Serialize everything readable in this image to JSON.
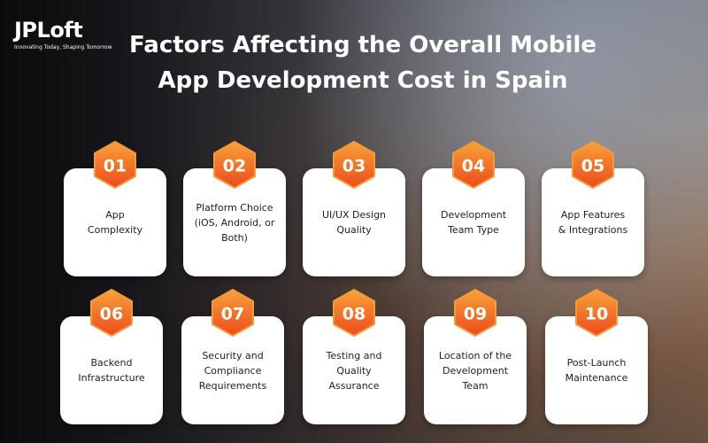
{
  "logo": {
    "name": "JPLoft",
    "tagline": "Innovating Today, Shaping Tomorrow"
  },
  "title": [
    "Factors Affecting the Overall Mobile",
    "App Development Cost in Spain"
  ],
  "factors": [
    {
      "number": "01",
      "lines": [
        "App",
        "Complexity"
      ]
    },
    {
      "number": "02",
      "lines": [
        "Platform Choice",
        "(iOS, Android, or",
        "Both)"
      ]
    },
    {
      "number": "03",
      "lines": [
        "UI/UX Design",
        "Quality"
      ]
    },
    {
      "number": "04",
      "lines": [
        "Development",
        "Team Type"
      ]
    },
    {
      "number": "05",
      "lines": [
        "App Features",
        "& Integrations"
      ]
    },
    {
      "number": "06",
      "lines": [
        "Backend",
        "Infrastructure"
      ]
    },
    {
      "number": "07",
      "lines": [
        "Security and",
        "Compliance",
        "Requirements"
      ]
    },
    {
      "number": "08",
      "lines": [
        "Testing and",
        "Quality",
        "Assurance"
      ]
    },
    {
      "number": "09",
      "lines": [
        "Location of the",
        "Development",
        "Team"
      ]
    },
    {
      "number": "10",
      "lines": [
        "Post-Launch",
        "Maintenance"
      ]
    }
  ]
}
